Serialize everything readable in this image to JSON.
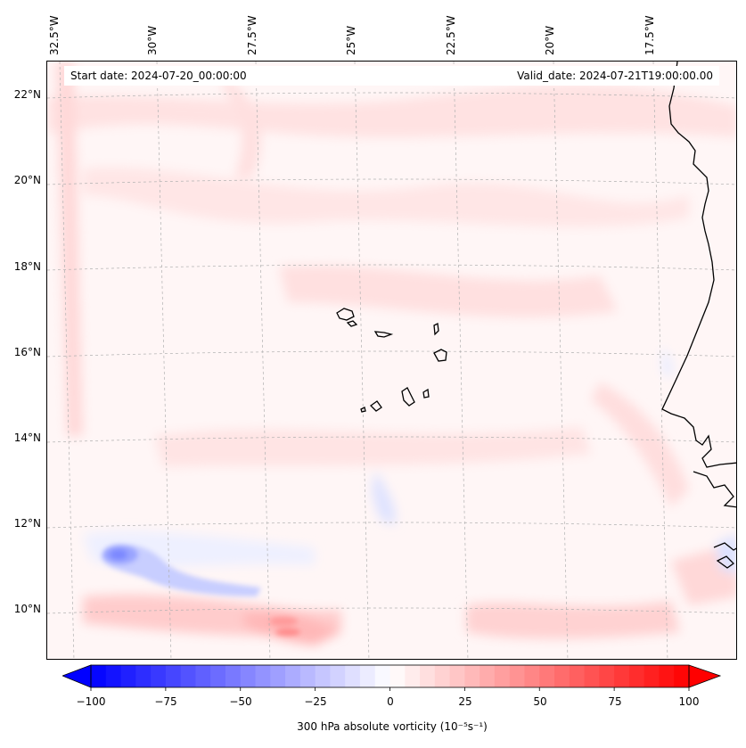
{
  "header": {
    "start_date": "Start date: 2024-07-20_00:00:00",
    "valid_date": "Valid_date: 2024-07-21T19:00:00.00"
  },
  "axes": {
    "longitudes": [
      {
        "label": "32.5°W",
        "value": -32.5
      },
      {
        "label": "30°W",
        "value": -30
      },
      {
        "label": "27.5°W",
        "value": -27.5
      },
      {
        "label": "25°W",
        "value": -25
      },
      {
        "label": "22.5°W",
        "value": -22.5
      },
      {
        "label": "20°W",
        "value": -20
      },
      {
        "label": "17.5°W",
        "value": -17.5
      }
    ],
    "latitudes": [
      {
        "label": "22°N",
        "value": 22
      },
      {
        "label": "20°N",
        "value": 20
      },
      {
        "label": "18°N",
        "value": 18
      },
      {
        "label": "16°N",
        "value": 16
      },
      {
        "label": "14°N",
        "value": 14
      },
      {
        "label": "12°N",
        "value": 12
      },
      {
        "label": "10°N",
        "value": 10
      }
    ]
  },
  "colorbar": {
    "label": "300 hPa absolute vorticity (10⁻⁵s⁻¹)",
    "ticks": [
      "−100",
      "−75",
      "−50",
      "−25",
      "0",
      "25",
      "50",
      "75",
      "100"
    ],
    "tick_values": [
      -100,
      -75,
      -50,
      -25,
      0,
      25,
      50,
      75,
      100
    ],
    "min": -100,
    "max": 100,
    "colormap": "bwr",
    "negative_color": "#0000ff",
    "positive_color": "#ff0000",
    "center_color": "#ffffff"
  },
  "colors": {
    "background_field": "#fff6f6",
    "gridline": "#b0b0b0",
    "coastline": "#000000"
  }
}
